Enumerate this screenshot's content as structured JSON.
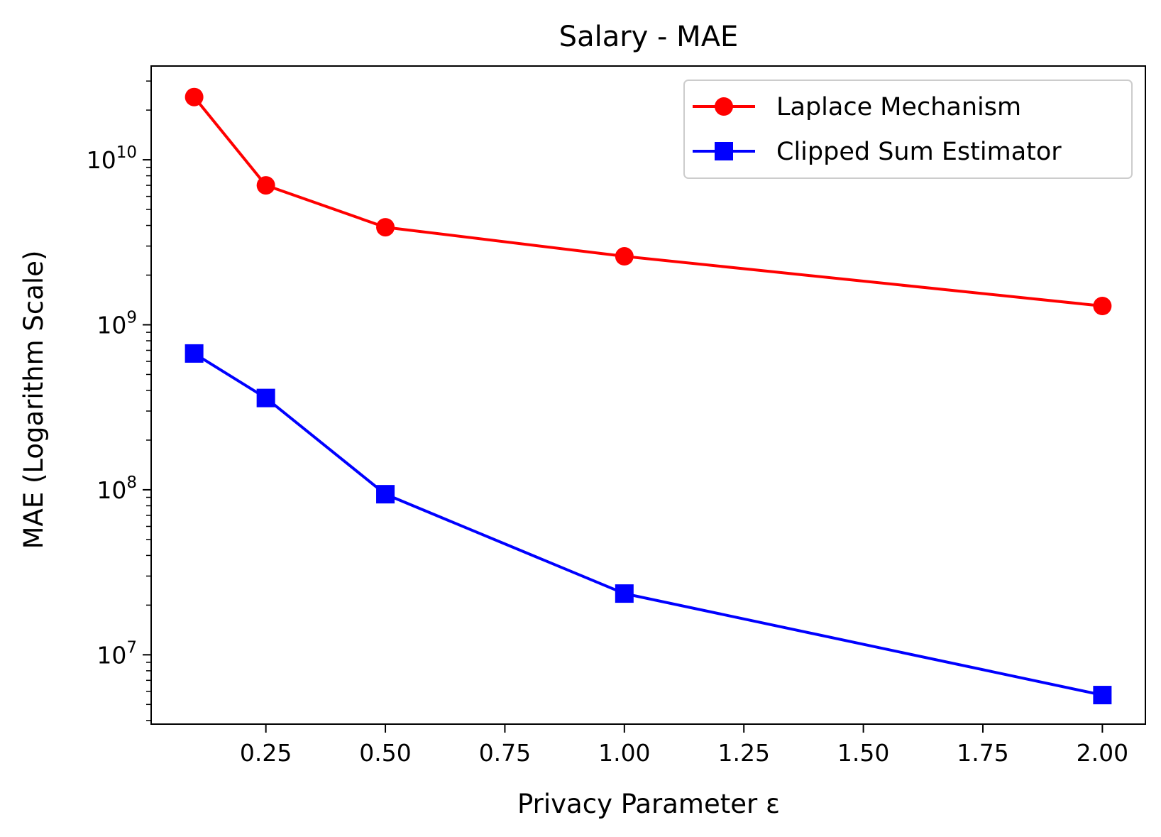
{
  "chart_data": {
    "type": "line",
    "title": "Salary - MAE",
    "xlabel": "Privacy Parameter ε",
    "ylabel": "MAE (Logarithm Scale)",
    "x": [
      0.1,
      0.25,
      0.5,
      1.0,
      2.0
    ],
    "xlim": [
      0.01,
      2.09
    ],
    "ylim": [
      3800000.0,
      37000000000.0
    ],
    "yscale": "log",
    "x_ticks": [
      {
        "value": 0.25,
        "label": "0.25"
      },
      {
        "value": 0.5,
        "label": "0.50"
      },
      {
        "value": 0.75,
        "label": "0.75"
      },
      {
        "value": 1.0,
        "label": "1.00"
      },
      {
        "value": 1.25,
        "label": "1.25"
      },
      {
        "value": 1.5,
        "label": "1.50"
      },
      {
        "value": 1.75,
        "label": "1.75"
      },
      {
        "value": 2.0,
        "label": "2.00"
      }
    ],
    "y_ticks": [
      {
        "value": 10000000.0,
        "base": "10",
        "exp": "7"
      },
      {
        "value": 100000000.0,
        "base": "10",
        "exp": "8"
      },
      {
        "value": 1000000000.0,
        "base": "10",
        "exp": "9"
      },
      {
        "value": 10000000000.0,
        "base": "10",
        "exp": "10"
      }
    ],
    "grid": false,
    "legend_position": "top-right",
    "series": [
      {
        "name": "Laplace Mechanism",
        "color": "#ff0000",
        "marker": "circle",
        "values": [
          24000000000.0,
          7000000000.0,
          3900000000.0,
          2600000000.0,
          1300000000.0
        ]
      },
      {
        "name": "Clipped Sum Estimator",
        "color": "#0000ff",
        "marker": "square",
        "values": [
          670000000.0,
          360000000.0,
          94000000.0,
          23500000.0,
          5700000.0
        ]
      }
    ]
  }
}
